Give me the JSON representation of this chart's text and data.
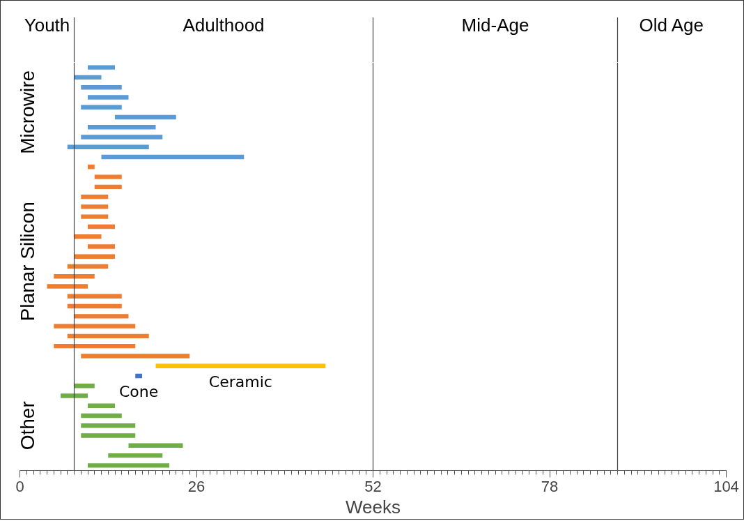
{
  "chart_data": {
    "type": "bar",
    "orientation": "horizontal",
    "xlabel": "Weeks",
    "categories": [
      null,
      null,
      null,
      null,
      null,
      null,
      null,
      null,
      null,
      null,
      null,
      null,
      null,
      null,
      null,
      null,
      null,
      null,
      null,
      null,
      null,
      null,
      null,
      null,
      null,
      null,
      null,
      null,
      null,
      null,
      null,
      null,
      null,
      null,
      null,
      null,
      null,
      null,
      null,
      null,
      null
    ],
    "series": [
      {
        "name": "Microwire",
        "color": "#5b9bd5",
        "base": [
          10,
          8,
          9,
          10,
          9,
          14,
          10,
          9,
          7,
          12,
          null,
          null,
          null,
          null,
          null,
          null,
          null,
          null,
          null,
          null,
          null,
          null,
          null,
          null,
          null,
          null,
          null,
          null,
          null,
          null,
          null,
          null,
          null,
          null,
          null,
          null,
          null,
          null,
          null,
          null,
          null
        ],
        "values": [
          4,
          4,
          6,
          6,
          6,
          9,
          10,
          12,
          12,
          21,
          null,
          null,
          null,
          null,
          null,
          null,
          null,
          null,
          null,
          null,
          null,
          null,
          null,
          null,
          null,
          null,
          null,
          null,
          null,
          null,
          null,
          null,
          null,
          null,
          null,
          null,
          null,
          null,
          null,
          null,
          null
        ]
      },
      {
        "name": "Planar Silicon",
        "color": "#ed7d31",
        "base": [
          null,
          null,
          null,
          null,
          null,
          null,
          null,
          null,
          null,
          null,
          10,
          11,
          11,
          9,
          9,
          9,
          10,
          8,
          10,
          8,
          7,
          5,
          4,
          7,
          7,
          8,
          5,
          7,
          5,
          9,
          null,
          null,
          null,
          null,
          null,
          null,
          null,
          null,
          null,
          null,
          null
        ],
        "values": [
          null,
          null,
          null,
          null,
          null,
          null,
          null,
          null,
          null,
          null,
          1,
          4,
          4,
          4,
          4,
          4,
          4,
          4,
          4,
          6,
          6,
          6,
          6,
          8,
          8,
          8,
          12,
          12,
          12,
          16,
          null,
          null,
          null,
          null,
          null,
          null,
          null,
          null,
          null,
          null,
          null
        ]
      },
      {
        "name": "Ceramic",
        "color": "#ffc000",
        "base": [
          null,
          null,
          null,
          null,
          null,
          null,
          null,
          null,
          null,
          null,
          null,
          null,
          null,
          null,
          null,
          null,
          null,
          null,
          null,
          null,
          null,
          null,
          null,
          null,
          null,
          null,
          null,
          null,
          null,
          null,
          20,
          null,
          null,
          null,
          null,
          null,
          null,
          null,
          null,
          null,
          null
        ],
        "values": [
          null,
          null,
          null,
          null,
          null,
          null,
          null,
          null,
          null,
          null,
          null,
          null,
          null,
          null,
          null,
          null,
          null,
          null,
          null,
          null,
          null,
          null,
          null,
          null,
          null,
          null,
          null,
          null,
          null,
          null,
          25,
          null,
          null,
          null,
          null,
          null,
          null,
          null,
          null,
          null,
          null
        ]
      },
      {
        "name": "Cone",
        "color": "#4472c4",
        "base": [
          null,
          null,
          null,
          null,
          null,
          null,
          null,
          null,
          null,
          null,
          null,
          null,
          null,
          null,
          null,
          null,
          null,
          null,
          null,
          null,
          null,
          null,
          null,
          null,
          null,
          null,
          null,
          null,
          null,
          null,
          null,
          17,
          null,
          null,
          null,
          null,
          null,
          null,
          null,
          null,
          null
        ],
        "values": [
          null,
          null,
          null,
          null,
          null,
          null,
          null,
          null,
          null,
          null,
          null,
          null,
          null,
          null,
          null,
          null,
          null,
          null,
          null,
          null,
          null,
          null,
          null,
          null,
          null,
          null,
          null,
          null,
          null,
          null,
          null,
          1,
          null,
          null,
          null,
          null,
          null,
          null,
          null,
          null,
          null
        ]
      },
      {
        "name": "Other",
        "color": "#70ad47",
        "base": [
          null,
          null,
          null,
          null,
          null,
          null,
          null,
          null,
          null,
          null,
          null,
          null,
          null,
          null,
          null,
          null,
          null,
          null,
          null,
          null,
          null,
          null,
          null,
          null,
          null,
          null,
          null,
          null,
          null,
          null,
          null,
          null,
          8,
          6,
          10,
          9,
          9,
          9,
          16,
          13,
          10
        ],
        "values": [
          null,
          null,
          null,
          null,
          null,
          null,
          null,
          null,
          null,
          null,
          null,
          null,
          null,
          null,
          null,
          null,
          null,
          null,
          null,
          null,
          null,
          null,
          null,
          null,
          null,
          null,
          null,
          null,
          null,
          null,
          null,
          null,
          3,
          4,
          4,
          6,
          8,
          8,
          8,
          8,
          12
        ]
      }
    ],
    "xlim": [
      0,
      104
    ],
    "xticks": [
      0,
      26,
      52,
      78,
      104
    ],
    "ref_lines": [
      {
        "axis": "x",
        "value": 8,
        "color": "#404040"
      },
      {
        "axis": "x",
        "value": 52,
        "color": "#404040"
      },
      {
        "axis": "x",
        "value": 88,
        "color": "#404040"
      }
    ],
    "annotations": [
      "Youth",
      "Adulthood",
      "Mid-Age",
      "Old Age"
    ],
    "grid": false
  }
}
